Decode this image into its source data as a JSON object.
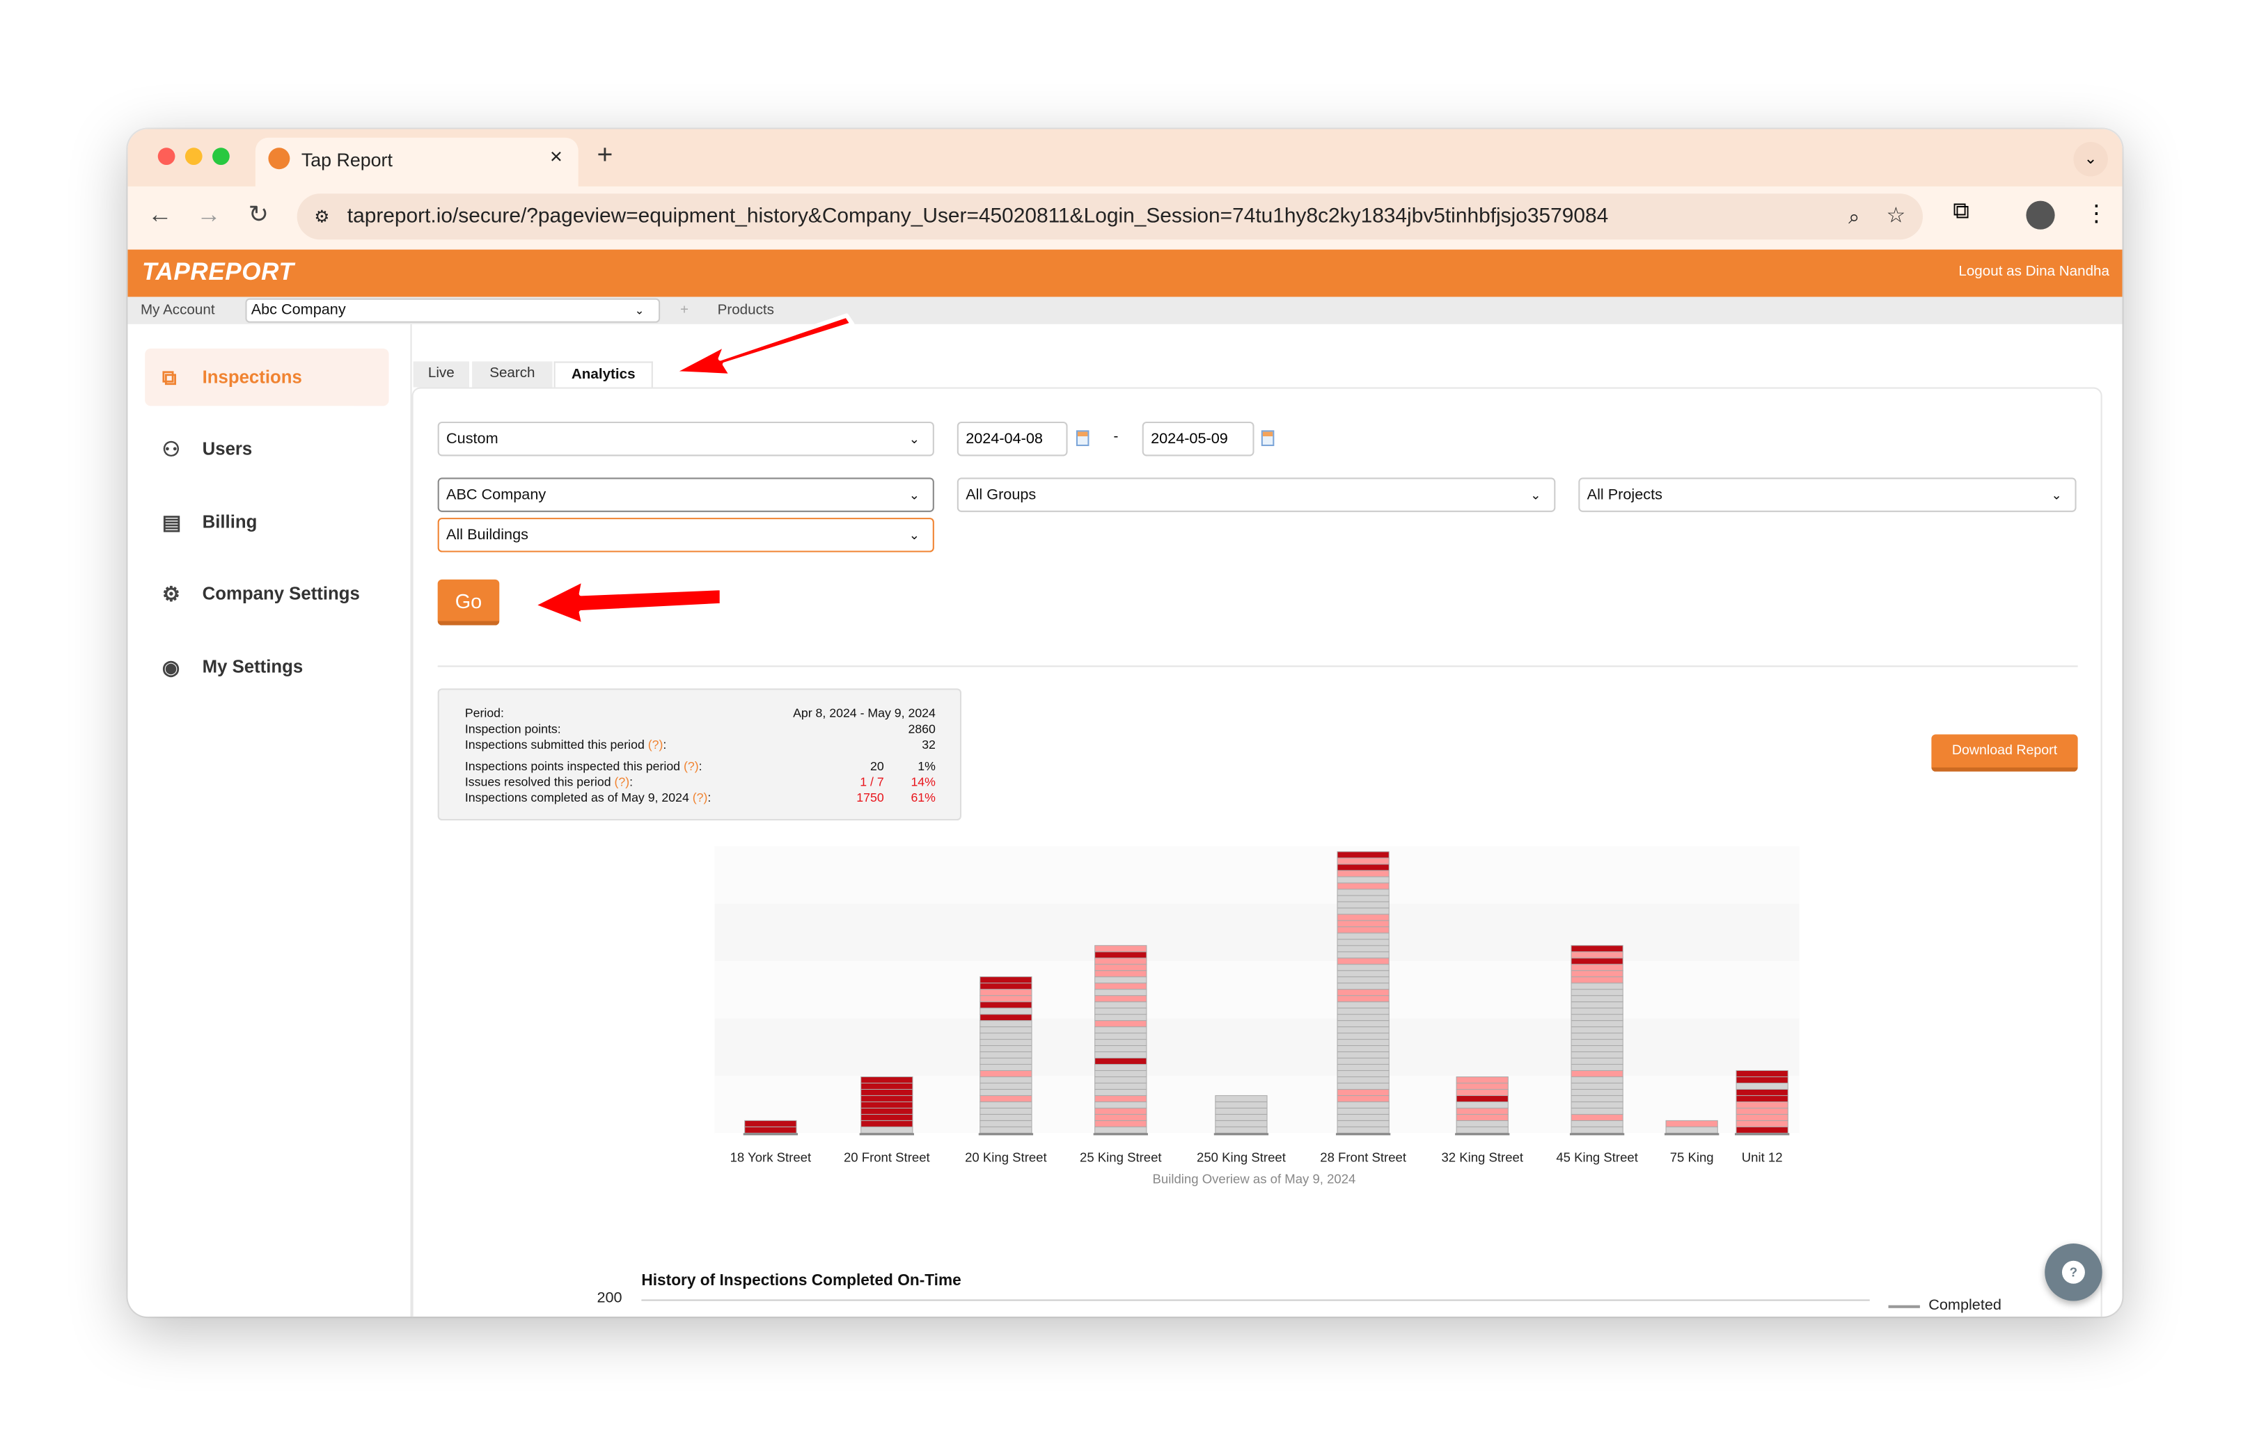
{
  "browser": {
    "tab_title": "Tap Report",
    "url": "tapreport.io/secure/?pageview=equipment_history&Company_User=45020811&Login_Session=74tu1hy8c2ky1834jbv5tinhbfjsjo3579084"
  },
  "header": {
    "logo": "TAPREPORT",
    "logout": "Logout as Dina Nandha"
  },
  "subnav": {
    "my_account": "My Account",
    "company": "Abc Company",
    "plus": "+",
    "products": "Products"
  },
  "sidebar": {
    "items": [
      {
        "label": "Inspections",
        "icon": "inspection-icon",
        "active": true
      },
      {
        "label": "Users",
        "icon": "users-icon"
      },
      {
        "label": "Billing",
        "icon": "billing-icon"
      },
      {
        "label": "Company Settings",
        "icon": "gear-icon"
      },
      {
        "label": "My Settings",
        "icon": "user-circle-icon"
      }
    ]
  },
  "tabs": [
    {
      "label": "Live"
    },
    {
      "label": "Search"
    },
    {
      "label": "Analytics",
      "active": true
    }
  ],
  "filters": {
    "period": "Custom",
    "date_from": "2024-04-08",
    "date_sep": "-",
    "date_to": "2024-05-09",
    "company": "ABC Company",
    "groups": "All Groups",
    "projects": "All Projects",
    "buildings": "All Buildings",
    "go": "Go"
  },
  "stats": {
    "rows": [
      {
        "label": "Period:",
        "v2": "Apr 8, 2024 - May 9, 2024"
      },
      {
        "label": "Inspection points:",
        "v2": "2860"
      },
      {
        "label": "Inspections submitted this period",
        "help": "(?)",
        "v2": "32"
      },
      {
        "label": "Inspections points inspected this period",
        "help": "(?)",
        "v1": "20",
        "v2": "1%"
      },
      {
        "label": "Issues resolved this period",
        "help": "(?)",
        "v1": "1 / 7",
        "v2": "14%",
        "red": true
      },
      {
        "label": "Inspections completed as of May 9, 2024",
        "help": "(?)",
        "v1": "1750",
        "v2": "61%",
        "red": true
      }
    ]
  },
  "download_report": "Download Report",
  "chart_data": [
    {
      "type": "bar",
      "stacked": true,
      "xlabel": "Building Overiew as of May 9, 2024",
      "categories": [
        "18 York Street",
        "20 Front Street",
        "20 King Street",
        "25 King Street",
        "250 King Street",
        "28 Front Street",
        "32 King Street",
        "45 King Street",
        "75 King",
        "Unit 12"
      ],
      "segment_colors": {
        "g": "#d3d3d3",
        "p": "#ff9a9a",
        "r": "#bd0a14"
      },
      "segments_bottom_to_top": [
        "rr",
        "grrrrrrrr",
        "gggggpgggpggggggggrgrpprr",
        "gpppgpgggggrgggggpgggpgpgppprp",
        "gggggg",
        "gggggppggggggggggggggppggggpggggpppggggpgprpr",
        "ggppgrppp",
        "ggpggggggpggggggggggggggppprpr",
        "gp",
        "rpppprrgrr"
      ],
      "grid": true
    },
    {
      "type": "line",
      "title": "History of Inspections Completed On-Time",
      "y_ticks": [
        "200"
      ],
      "series": [
        {
          "name": "Completed"
        }
      ],
      "legend": "right"
    }
  ]
}
